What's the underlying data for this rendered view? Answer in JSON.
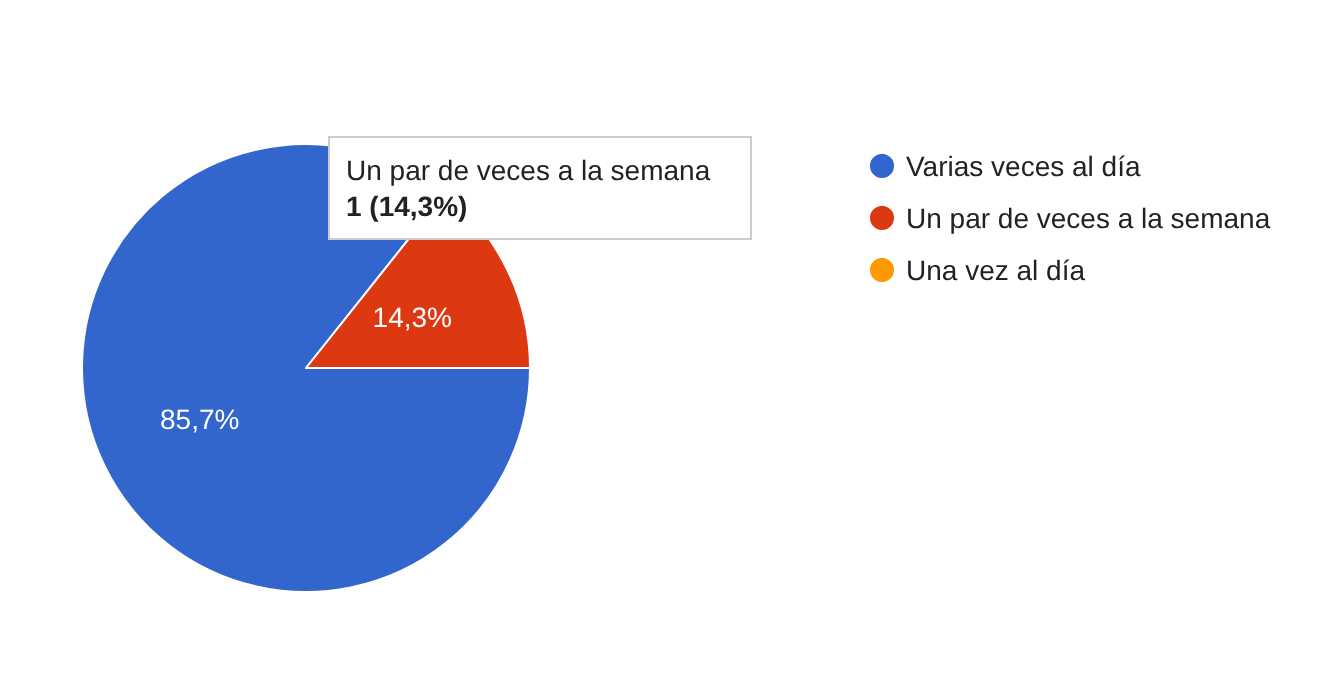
{
  "chart_data": {
    "type": "pie",
    "categories": [
      "Varias veces al día",
      "Un par de veces a la semana",
      "Una vez al día"
    ],
    "values": [
      85.7,
      14.3,
      0
    ],
    "colors": [
      "#3366cc",
      "#dc3912",
      "#ff9900"
    ],
    "value_labels": [
      "85,7%",
      "14,3%",
      null
    ],
    "legend": "right",
    "annotations": [
      "Un par de veces a la semana",
      "1 (14,3%)"
    ]
  }
}
